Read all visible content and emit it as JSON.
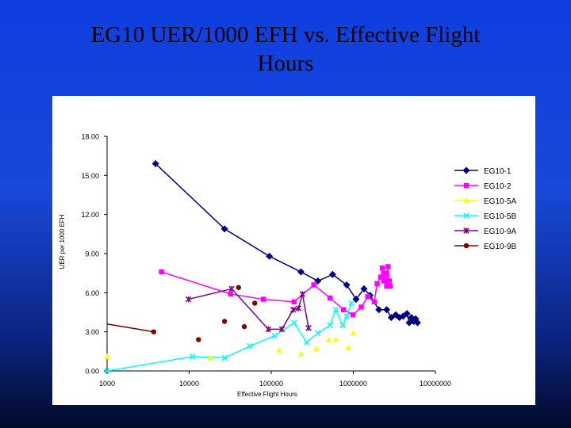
{
  "slide": {
    "title_line1": "EG10 UER/1000 EFH vs. Effective Flight",
    "title_line2": "Hours"
  },
  "colors": {
    "background_top": "#1848d8",
    "background_bottom": "#030a2a",
    "EG10-1": "#000080",
    "EG10-2": "#ff00ff",
    "EG10-5A": "#ffff00",
    "EG10-5B": "#00ffff",
    "EG10-9A": "#800080",
    "EG10-9B": "#800000"
  },
  "chart_data": {
    "type": "scatter",
    "x_scale": "log",
    "xlabel": "Effective Flight Hours",
    "ylabel": "UER per 1000 EFH",
    "xlim": [
      1000,
      10000000
    ],
    "ylim": [
      0,
      18
    ],
    "x_ticks": [
      "1000",
      "10000",
      "100000",
      "1000000",
      "10000000"
    ],
    "y_ticks": [
      "0.00",
      "3.00",
      "6.00",
      "9.00",
      "12.00",
      "15.00",
      "18.00"
    ],
    "grid": false,
    "legend_position": "right",
    "series": [
      {
        "name": "EG10-1",
        "marker": "diamond",
        "lines": true,
        "points": [
          [
            3900,
            15.9
          ],
          [
            27000,
            10.9
          ],
          [
            95000,
            8.8
          ],
          [
            230000,
            7.6
          ],
          [
            370000,
            6.9
          ],
          [
            560000,
            7.4
          ],
          [
            830000,
            6.6
          ],
          [
            1080000,
            5.5
          ],
          [
            1350000,
            6.3
          ],
          [
            1600000,
            5.8
          ],
          [
            2050000,
            4.7
          ],
          [
            2550000,
            4.7
          ],
          [
            2900000,
            4.1
          ],
          [
            3300000,
            4.3
          ],
          [
            3650000,
            4.1
          ],
          [
            4050000,
            4.2
          ],
          [
            4500000,
            4.4
          ],
          [
            4800000,
            3.7
          ],
          [
            5100000,
            4.1
          ],
          [
            5450000,
            3.8
          ],
          [
            5750000,
            4.0
          ],
          [
            6050000,
            3.7
          ]
        ]
      },
      {
        "name": "EG10-2",
        "marker": "square",
        "lines": true,
        "points": [
          [
            4600,
            7.6
          ],
          [
            32000,
            5.9
          ],
          [
            80000,
            5.5
          ],
          [
            190000,
            5.3
          ],
          [
            330000,
            6.6
          ],
          [
            520000,
            5.6
          ],
          [
            760000,
            4.7
          ],
          [
            990000,
            4.3
          ],
          [
            1250000,
            4.9
          ],
          [
            1500000,
            5.7
          ],
          [
            1800000,
            5.3
          ],
          [
            1950000,
            6.7
          ],
          [
            2150000,
            7.2
          ],
          [
            2250000,
            7.9
          ],
          [
            2350000,
            6.9
          ],
          [
            2450000,
            7.5
          ],
          [
            2550000,
            6.5
          ],
          [
            2650000,
            8.0
          ],
          [
            2750000,
            6.9
          ],
          [
            2800000,
            6.5
          ]
        ]
      },
      {
        "name": "EG10-5A",
        "marker": "triangle",
        "lines": false,
        "points": [
          [
            1000,
            1.1
          ],
          [
            18000,
            1.0
          ],
          [
            125000,
            1.6
          ],
          [
            230000,
            1.3
          ],
          [
            350000,
            1.7
          ],
          [
            500000,
            2.4
          ],
          [
            610000,
            2.4
          ],
          [
            760000,
            3.5
          ],
          [
            870000,
            1.8
          ],
          [
            1000000,
            2.9
          ]
        ]
      },
      {
        "name": "EG10-5B",
        "marker": "x",
        "lines": true,
        "points": [
          [
            1000,
            0.0
          ],
          [
            11000,
            1.1
          ],
          [
            27000,
            1.0
          ],
          [
            55000,
            1.9
          ],
          [
            110000,
            2.7
          ],
          [
            190000,
            3.7
          ],
          [
            270000,
            2.2
          ],
          [
            370000,
            2.9
          ],
          [
            520000,
            3.5
          ],
          [
            610000,
            4.7
          ],
          [
            740000,
            3.5
          ],
          [
            830000,
            4.2
          ],
          [
            950000,
            5.2
          ]
        ]
      },
      {
        "name": "EG10-9A",
        "marker": "star",
        "lines": true,
        "points": [
          [
            9800,
            5.5
          ],
          [
            33000,
            6.3
          ],
          [
            92000,
            3.2
          ],
          [
            135000,
            3.2
          ],
          [
            185000,
            4.7
          ],
          [
            215000,
            4.8
          ],
          [
            240000,
            5.9
          ],
          [
            285000,
            3.3
          ]
        ]
      },
      {
        "name": "EG10-9B",
        "marker": "circle",
        "lines": false,
        "points": [
          [
            3700,
            3.0
          ],
          [
            13000,
            2.4
          ],
          [
            27000,
            3.8
          ],
          [
            40000,
            6.4
          ],
          [
            47000,
            3.4
          ],
          [
            63000,
            5.2
          ]
        ]
      }
    ],
    "extra_lines": [
      {
        "series": "EG10-9B",
        "points": [
          [
            1000,
            3.6
          ],
          [
            3700,
            3.0
          ]
        ]
      }
    ]
  }
}
